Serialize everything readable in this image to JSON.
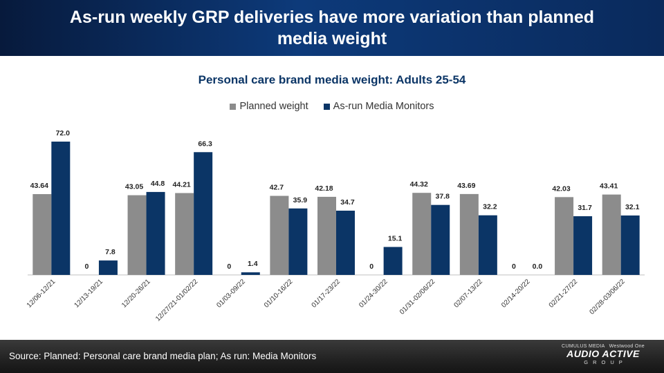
{
  "header": {
    "title": "As-run weekly GRP deliveries have more variation than planned media weight"
  },
  "footer": {
    "source": "Source: Planned: Personal care brand media plan; As run: Media Monitors",
    "logo_top_left": "CUMULUS MEDIA",
    "logo_top_right": "Westwood One",
    "logo_main": "AUDIO ACTIVE",
    "logo_sub": "GROUP"
  },
  "colors": {
    "planned": "#8c8c8c",
    "asrun": "#0b3566",
    "header_bg": "#0d3a7a"
  },
  "chart_data": {
    "type": "bar",
    "title": "Personal care brand media weight: Adults 25-54",
    "xlabel": "",
    "ylabel": "",
    "legend_position": "top-center",
    "grid": false,
    "categories": [
      "12/06-12/21",
      "12/13-19/21",
      "12/20-26/21",
      "12/27/21-01/02/22",
      "01/03-09/22",
      "01/10-16/22",
      "01/17-23/22",
      "01/24-30/22",
      "01/31-02/06/22",
      "02/07-13/22",
      "02/14-20/22",
      "02/21-27/22",
      "02/28-03/06/22"
    ],
    "series": [
      {
        "name": "Planned weight",
        "values": [
          43.64,
          0,
          43.05,
          44.21,
          0,
          42.7,
          42.18,
          0,
          44.32,
          43.69,
          0,
          42.03,
          43.41
        ],
        "labels": [
          "43.64",
          "0",
          "43.05",
          "44.21",
          "0",
          "42.7",
          "42.18",
          "0",
          "44.32",
          "43.69",
          "0",
          "42.03",
          "43.41"
        ]
      },
      {
        "name": "As-run Media Monitors",
        "values": [
          72.0,
          7.8,
          44.8,
          66.3,
          1.4,
          35.9,
          34.7,
          15.1,
          37.8,
          32.2,
          0.0,
          31.7,
          32.1
        ],
        "labels": [
          "72.0",
          "7.8",
          "44.8",
          "66.3",
          "1.4",
          "35.9",
          "34.7",
          "15.1",
          "37.8",
          "32.2",
          "0.0",
          "31.7",
          "32.1"
        ]
      }
    ],
    "ylim": [
      0,
      80
    ]
  }
}
